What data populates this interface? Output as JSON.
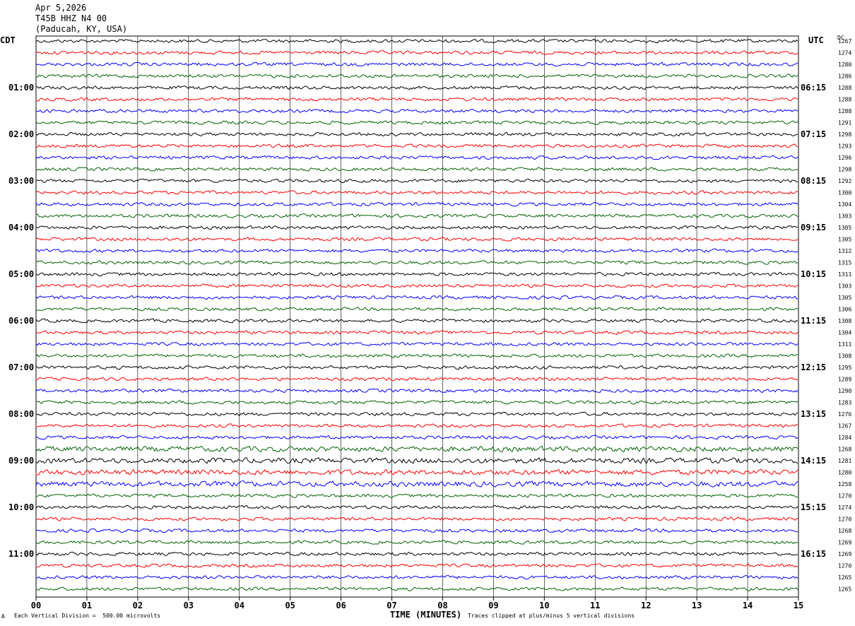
{
  "header": {
    "date": "Apr 5,2026",
    "station": "T45B HHZ N4 00",
    "location": "(Paducah, KY, USA)"
  },
  "chart_data": {
    "type": "line",
    "left_tz": "CDT",
    "right_tz": "UTC",
    "dc_heading": "DC",
    "xlabel": "TIME (MINUTES)",
    "x_ticks": [
      "00",
      "01",
      "02",
      "03",
      "04",
      "05",
      "06",
      "07",
      "08",
      "09",
      "10",
      "11",
      "12",
      "13",
      "14",
      "15"
    ],
    "xlim": [
      0,
      15
    ],
    "left_hour_labels": [
      "01:00",
      "02:00",
      "03:00",
      "04:00",
      "05:00",
      "06:00",
      "07:00",
      "08:00",
      "09:00",
      "10:00",
      "11:00"
    ],
    "right_hour_labels": [
      "06:15",
      "07:15",
      "08:15",
      "09:15",
      "10:15",
      "11:15",
      "12:15",
      "13:15",
      "14:15",
      "15:15",
      "16:15"
    ],
    "trace_colors": [
      "#000000",
      "#ff0000",
      "#0000ff",
      "#006400"
    ],
    "trace_count": 48,
    "dc_offsets": [
      1267,
      1274,
      1280,
      1286,
      1288,
      1288,
      1288,
      1291,
      1298,
      1293,
      1296,
      1298,
      1292,
      1300,
      1304,
      1303,
      1305,
      1305,
      1312,
      1315,
      1311,
      1303,
      1305,
      1306,
      1308,
      1304,
      1311,
      1308,
      1295,
      1289,
      1290,
      1283,
      1276,
      1267,
      1284,
      1268,
      1281,
      1280,
      1258,
      1270,
      1274,
      1270,
      1268,
      1269,
      1269,
      1270,
      1265,
      1265
    ],
    "vertical_division_note": "Each Vertical Division =  500.00 microvolts",
    "clip_note": "Traces clipped at plus/minus 5 vertical divisions",
    "corner_mark": "A"
  }
}
